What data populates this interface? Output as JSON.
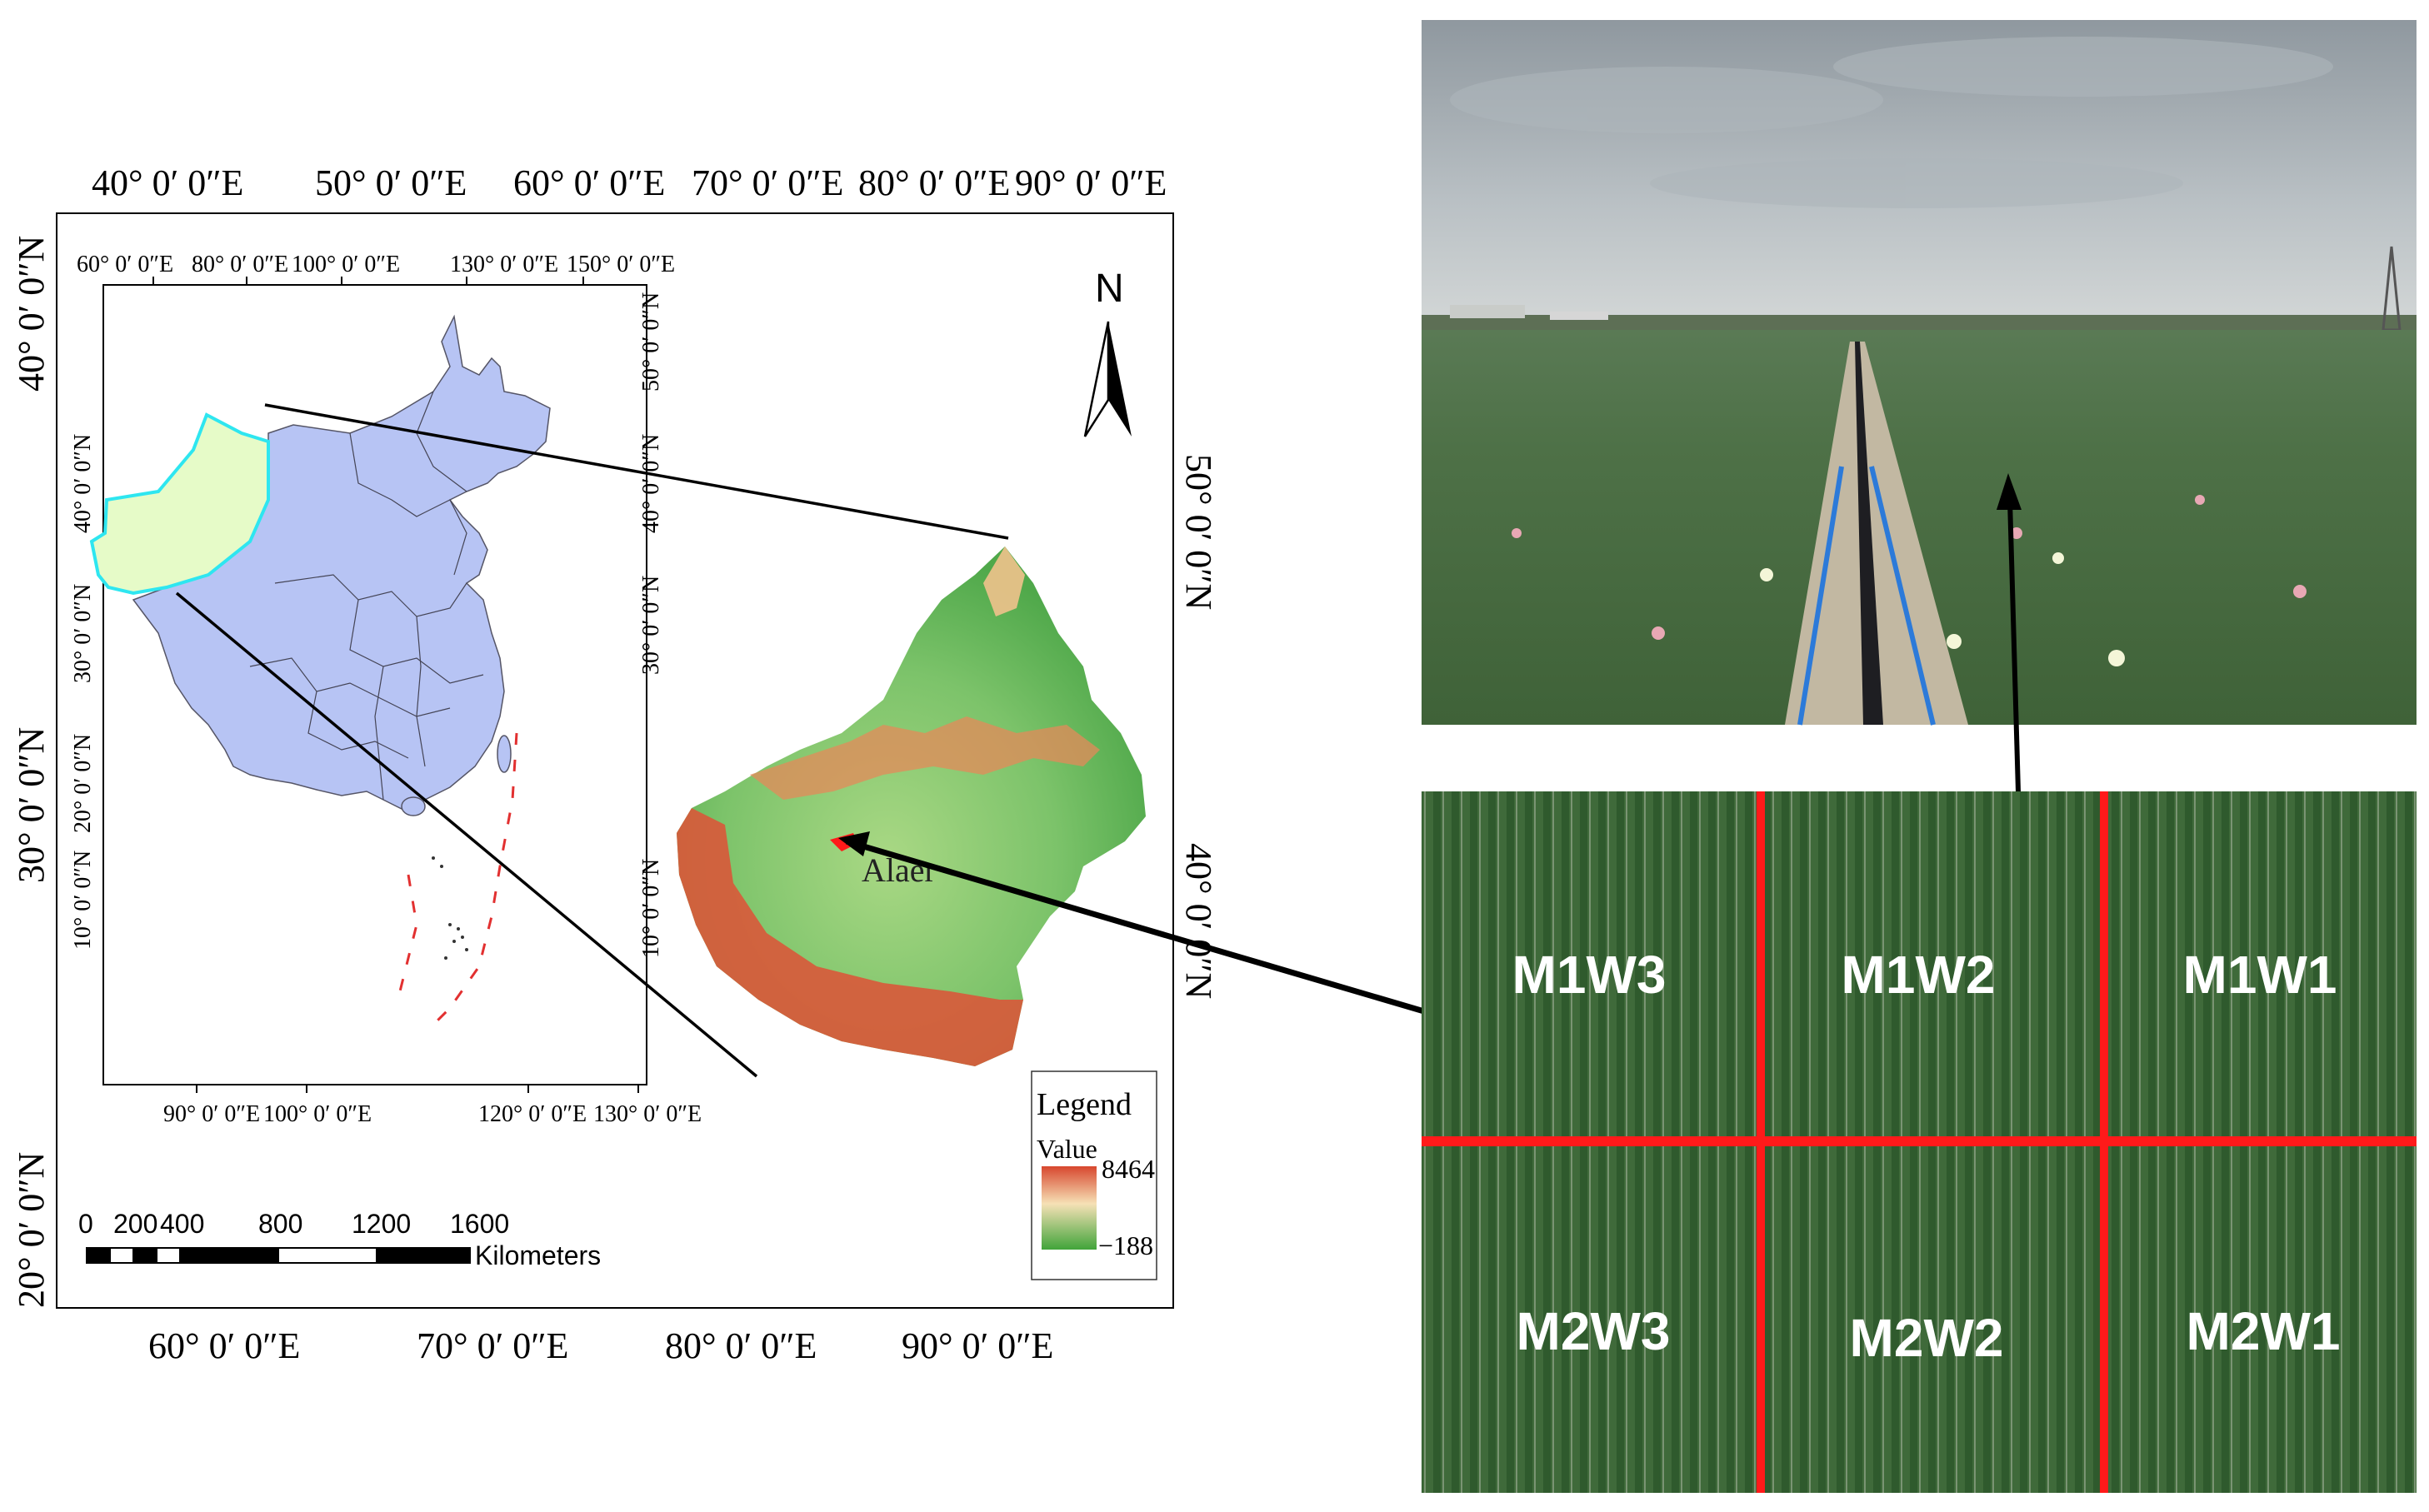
{
  "outer_map": {
    "top_lon_labels": [
      "40° 0′ 0″E",
      "50° 0′ 0″E",
      "60° 0′ 0″E",
      "70° 0′ 0″E",
      "80° 0′ 0″E",
      "90° 0′ 0″E"
    ],
    "bottom_lon_labels": [
      "60° 0′ 0″E",
      "70° 0′ 0″E",
      "80° 0′ 0″E",
      "90° 0′ 0″E"
    ],
    "left_lat_labels": [
      "40° 0′ 0″N",
      "30° 0′ 0″N",
      "20° 0′ 0″N"
    ],
    "right_lat_labels": [
      "50° 0′ 0″N",
      "40° 0′ 0″N"
    ]
  },
  "inset_map": {
    "top_lon_labels": [
      "60° 0′ 0″E",
      "80° 0′ 0″E",
      "100° 0′ 0″E",
      "130° 0′ 0″E",
      "150° 0′ 0″E"
    ],
    "bottom_lon_labels": [
      "90° 0′ 0″E",
      "100° 0′ 0″E",
      "120° 0′ 0″E",
      "130° 0′ 0″E"
    ],
    "right_lat_labels": [
      "50° 0′ 0″N",
      "40° 0′ 0″N",
      "30° 0′ 0″N",
      "10° 0′ 0″N"
    ],
    "left_lat_labels": [
      "40° 0′ 0″N",
      "30° 0′ 0″N",
      "20° 0′ 0″N",
      "10° 0′ 0″N"
    ],
    "colors": {
      "china": "#b7c4f4",
      "xinjiang": "#e6fbc8",
      "xinjiang_outline": "#2ee6f0"
    }
  },
  "north_arrow": {
    "label": "N"
  },
  "city_label": "Alaer",
  "legend": {
    "title": "Legend",
    "subtitle": "Value",
    "max_value": "8464",
    "min_value": "−188",
    "colors": [
      "#d7472e",
      "#f6e1b6",
      "#41a43a"
    ]
  },
  "scale_bar": {
    "ticks": [
      "0",
      "200",
      "400",
      "800",
      "1200",
      "1600"
    ],
    "unit": "Kilometers"
  },
  "plots": {
    "top_row": [
      "M1W3",
      "M1W2",
      "M1W1"
    ],
    "bottom_row": [
      "M2W3",
      "M2W2",
      "M2W1"
    ],
    "divider_color": "#ff1a1a"
  }
}
